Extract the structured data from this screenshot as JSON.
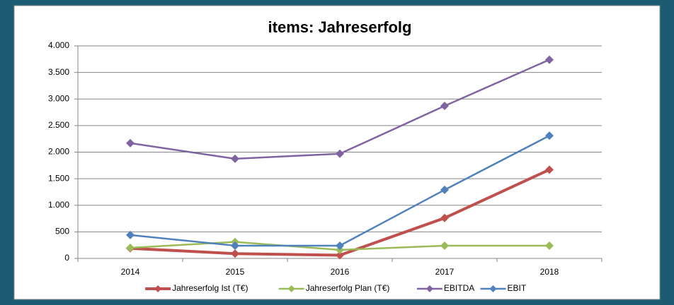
{
  "chart_data": {
    "type": "line",
    "title": "items: Jahreserfolg",
    "categories": [
      "2014",
      "2015",
      "2016",
      "2017",
      "2018"
    ],
    "series": [
      {
        "name": "Jahreserfolg Ist (T€)",
        "color": "#c0504d",
        "values": [
          190,
          90,
          60,
          760,
          1670
        ]
      },
      {
        "name": "Jahreserfolg Plan (T€)",
        "color": "#9bbb59",
        "values": [
          200,
          310,
          160,
          240,
          240
        ]
      },
      {
        "name": "EBITDA",
        "color": "#8064a2",
        "values": [
          2170,
          1875,
          1970,
          2870,
          3740
        ]
      },
      {
        "name": "EBIT",
        "color": "#4f81bd",
        "values": [
          440,
          240,
          240,
          1290,
          2310
        ]
      }
    ],
    "ylim": [
      0,
      4000
    ],
    "yticks": [
      0,
      500,
      {
        "value": 1000,
        "label": "1.000"
      },
      {
        "value": 1500,
        "label": "1.500"
      },
      {
        "value": 2000,
        "label": "2.000"
      },
      {
        "value": 2500,
        "label": "2.500"
      },
      {
        "value": 3000,
        "label": "3.000"
      },
      {
        "value": 3500,
        "label": "3.500"
      },
      {
        "value": 4000,
        "label": "4.000"
      }
    ],
    "grid": true,
    "legend": "bottom"
  }
}
